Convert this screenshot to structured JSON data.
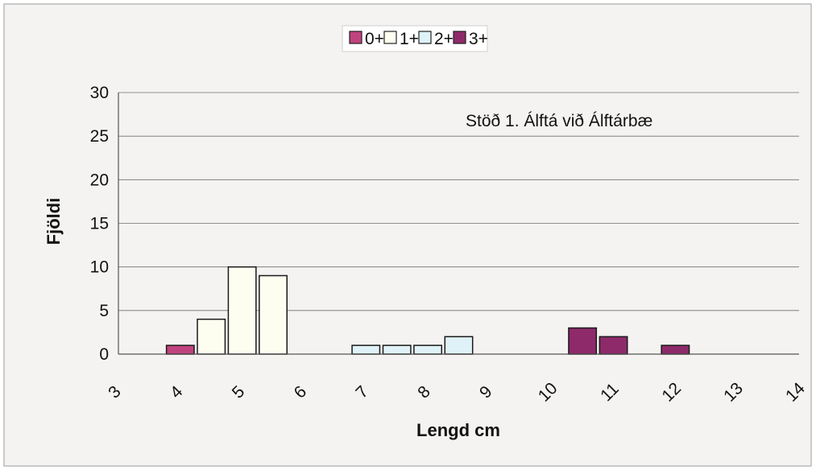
{
  "chart_data": {
    "type": "bar",
    "xlabel": "Lengd cm",
    "ylabel": "Fjöldi",
    "annotation": "Stöð 1.  Álftá við Álftárbæ",
    "ylim": [
      0,
      30
    ],
    "yticks": [
      0,
      5,
      10,
      15,
      20,
      25,
      30
    ],
    "xlim": [
      3,
      14
    ],
    "xticks": [
      "3",
      "4",
      "5",
      "6",
      "7",
      "8",
      "9",
      "10",
      "11",
      "12",
      "13",
      "14"
    ],
    "grid": true,
    "legend_position": "top",
    "series": [
      {
        "name": "0+",
        "color": "#c0437e",
        "x": [
          4.0
        ],
        "values": [
          1
        ]
      },
      {
        "name": "1+",
        "color": "#fdfdf0",
        "x": [
          4.5,
          5.0,
          5.5
        ],
        "values": [
          4,
          10,
          9
        ]
      },
      {
        "name": "2+",
        "color": "#dff2f7",
        "x": [
          7.0,
          7.5,
          8.0,
          8.5
        ],
        "values": [
          1,
          1,
          1,
          2
        ]
      },
      {
        "name": "3+",
        "color": "#8e2a6a",
        "x": [
          10.5,
          11.0,
          12.0
        ],
        "values": [
          3,
          2,
          1
        ]
      }
    ]
  }
}
